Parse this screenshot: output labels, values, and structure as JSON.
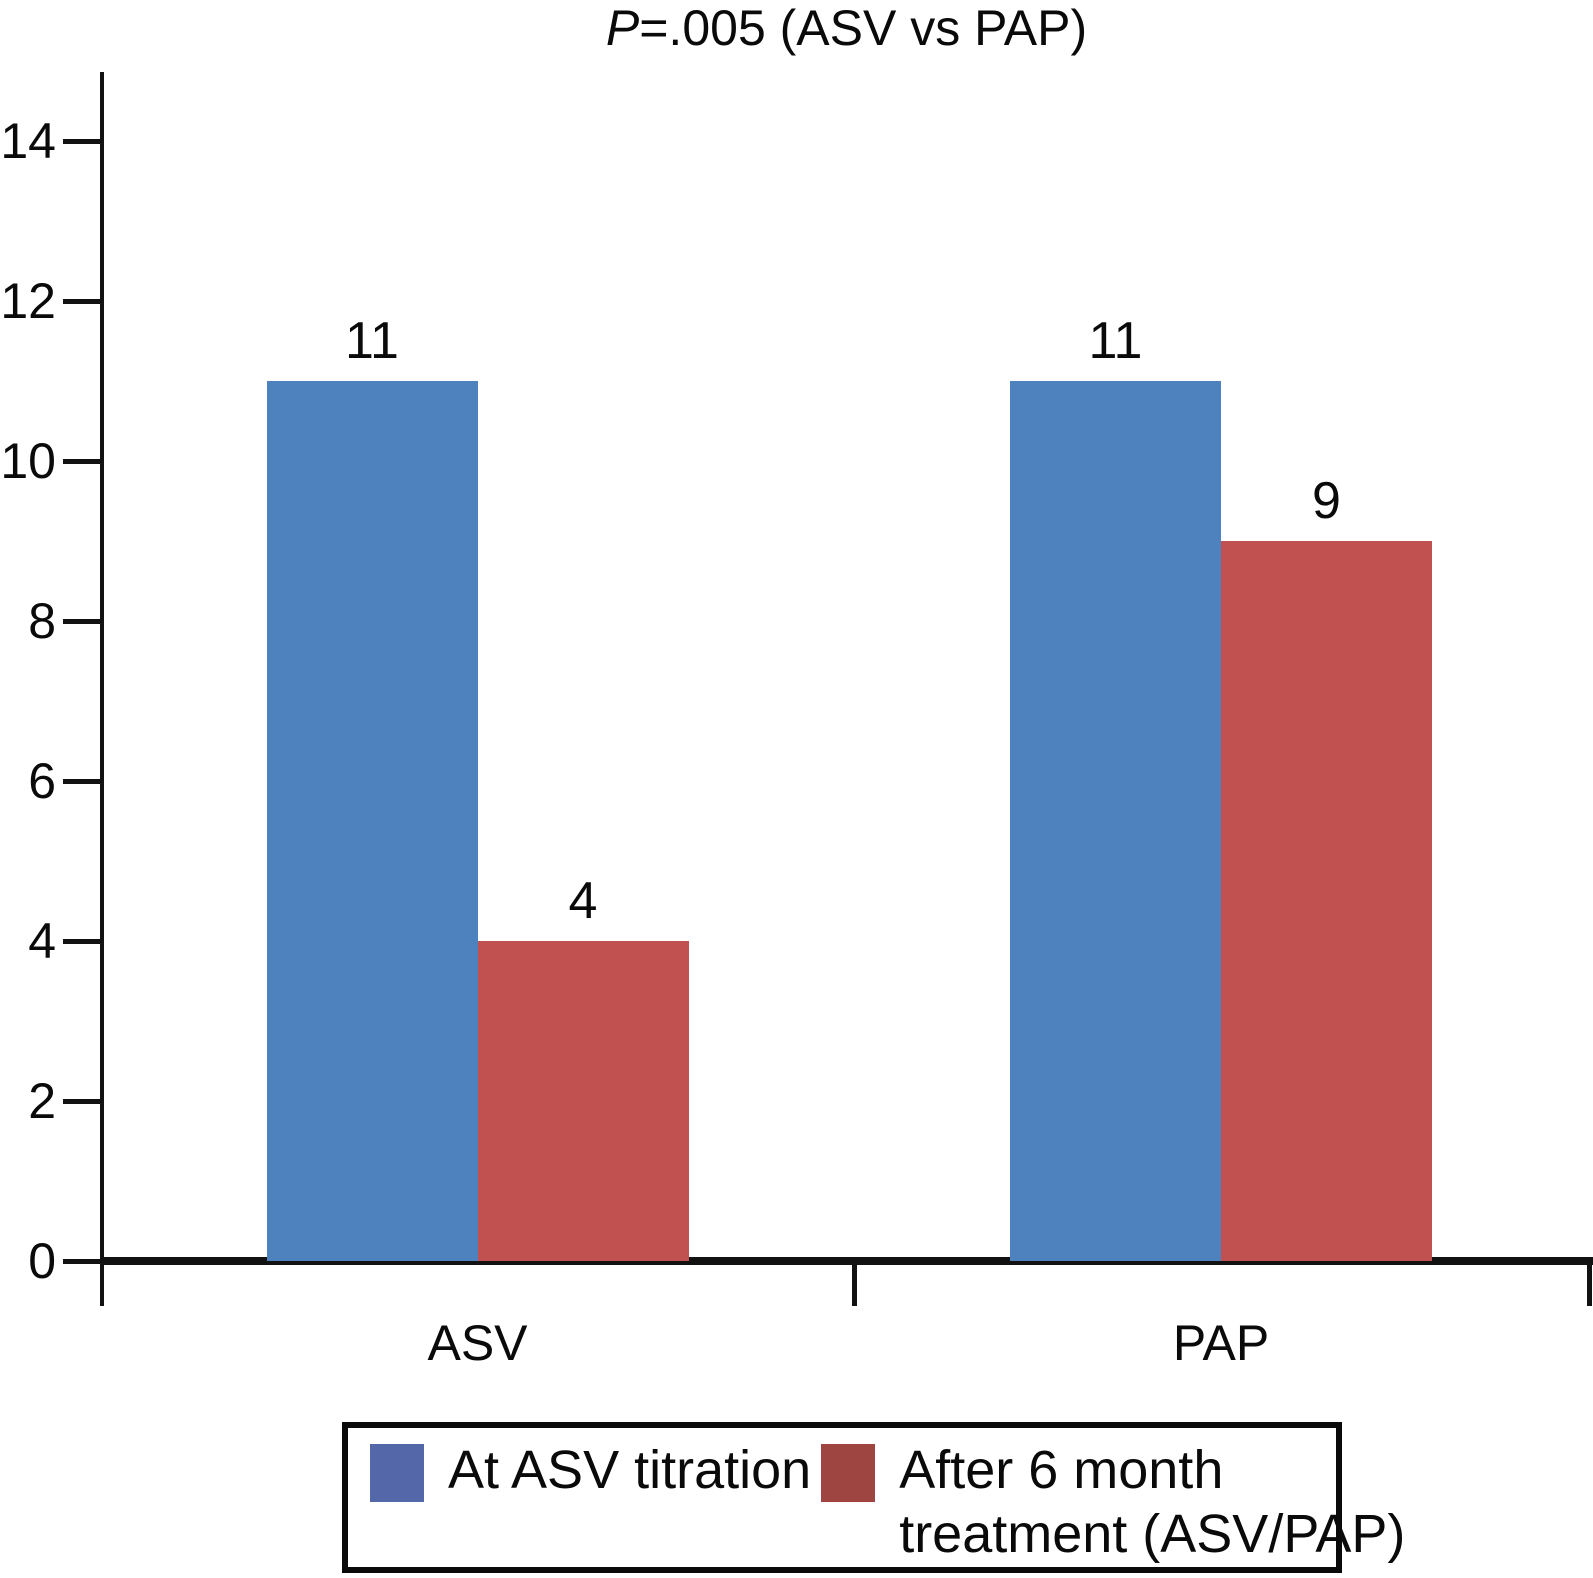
{
  "title": {
    "p": "P",
    "rest": "=.005 (ASV vs PAP)"
  },
  "chart_data": {
    "type": "bar",
    "title": "P=.005 (ASV vs PAP)",
    "categories": [
      "ASV",
      "PAP"
    ],
    "series": [
      {
        "name": "At ASV titration",
        "color": "#4E82BE",
        "values": [
          11,
          11
        ]
      },
      {
        "name": "After 6 month treatment (ASV/PAP)",
        "color": "#C05150",
        "values": [
          4,
          9
        ]
      }
    ],
    "bar_value_labels": [
      [
        11,
        11
      ],
      [
        4,
        9
      ]
    ],
    "ylim": [
      0,
      15
    ],
    "yticks": [
      0,
      2,
      4,
      6,
      8,
      10,
      12,
      14
    ],
    "grid": false,
    "legend_position": "bottom"
  },
  "legend": {
    "items": [
      {
        "color": "#5467A9",
        "lines": [
          "At ASV titration"
        ]
      },
      {
        "color": "#9E4441",
        "lines": [
          "After 6 month",
          "treatment (ASV/PAP)"
        ]
      }
    ]
  }
}
